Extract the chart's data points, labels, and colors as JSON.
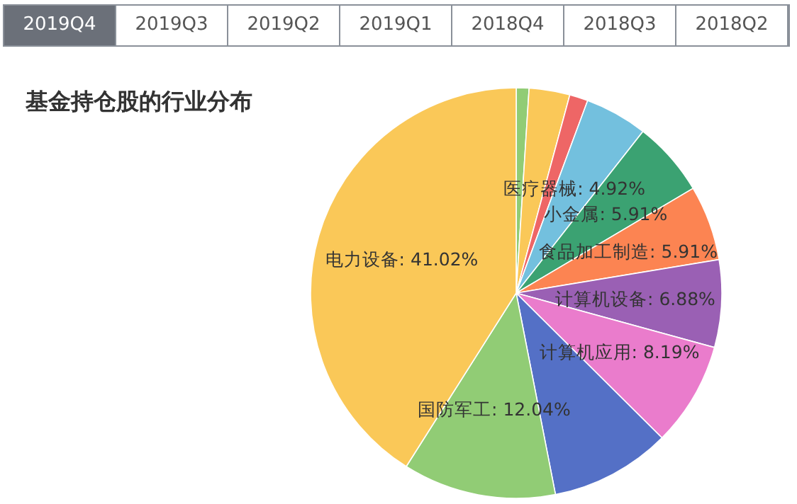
{
  "chart_data": {
    "type": "pie",
    "title": "基金持仓股的行业分布",
    "annotations": [
      "2019Q4",
      "2019Q3",
      "2019Q2",
      "2019Q1",
      "2018Q4",
      "2018Q3",
      "2018Q2"
    ],
    "categories": [
      null,
      null,
      null,
      "医疗器械",
      "小金属",
      "食品加工制造",
      "计算机设备",
      "计算机应用",
      null,
      "国防军工",
      "电力设备"
    ],
    "values": [
      1.0,
      3.2,
      1.45,
      4.92,
      5.91,
      5.91,
      6.88,
      8.19,
      9.48,
      12.04,
      41.02
    ],
    "value_labels": [
      null,
      null,
      null,
      "4.92%",
      "5.91%",
      "5.91%",
      "6.88%",
      "8.19%",
      null,
      "12.04%",
      "41.02%"
    ],
    "colors": [
      "#91cc75",
      "#fac858",
      "#ee6666",
      "#73c0de",
      "#3ba272",
      "#fc8452",
      "#9a60b4",
      "#ea7ccc",
      "#5470c6",
      "#91cc75",
      "#fac858"
    ]
  }
}
